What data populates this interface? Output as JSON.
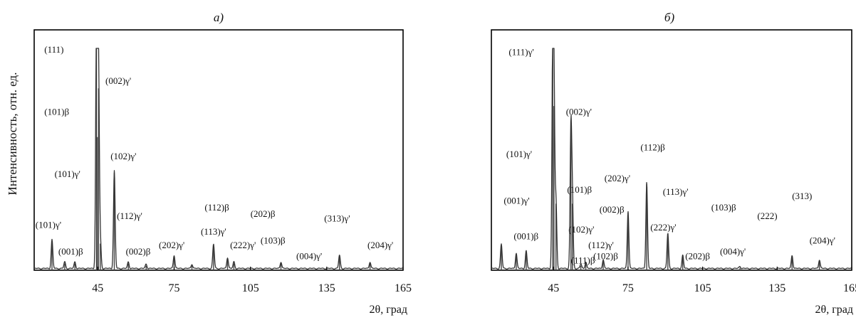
{
  "figure": {
    "ylabel": "Интенсивность, отн. ед."
  },
  "chart_data": [
    {
      "type": "line",
      "title": "a)",
      "xlabel": "2θ, град",
      "ylabel": "Интенсивность, отн. ед.",
      "xlim": [
        20,
        165
      ],
      "ylim": [
        0,
        100
      ],
      "xticks": [
        45,
        75,
        105,
        135,
        165
      ],
      "grid": false,
      "peaks": [
        {
          "x": 27,
          "y": 13
        },
        {
          "x": 32,
          "y": 3
        },
        {
          "x": 36,
          "y": 3
        },
        {
          "x": 44.5,
          "y": 100
        },
        {
          "x": 45.3,
          "y": 82
        },
        {
          "x": 44.8,
          "y": 60
        },
        {
          "x": 46,
          "y": 12
        },
        {
          "x": 51.5,
          "y": 44
        },
        {
          "x": 57,
          "y": 3
        },
        {
          "x": 64,
          "y": 2
        },
        {
          "x": 75,
          "y": 6
        },
        {
          "x": 82,
          "y": 2
        },
        {
          "x": 90.5,
          "y": 11
        },
        {
          "x": 96,
          "y": 5
        },
        {
          "x": 98.5,
          "y": 3
        },
        {
          "x": 117,
          "y": 3
        },
        {
          "x": 140,
          "y": 6
        },
        {
          "x": 152,
          "y": 3
        }
      ],
      "annotations": [
        {
          "text": "(111)",
          "x": 24,
          "y": 98
        },
        {
          "text": "(002)γ'",
          "x": 48,
          "y": 84
        },
        {
          "text": "(101)β",
          "x": 24,
          "y": 70
        },
        {
          "text": "(102)γ'",
          "x": 50,
          "y": 50
        },
        {
          "text": "(101)γ'",
          "x": 28,
          "y": 42
        },
        {
          "text": "(112)γ'",
          "x": 52.5,
          "y": 23
        },
        {
          "text": "(112)β",
          "x": 87,
          "y": 27
        },
        {
          "text": "(202)β",
          "x": 105,
          "y": 24
        },
        {
          "text": "(313)γ'",
          "x": 134,
          "y": 22
        },
        {
          "text": "(101)γ'",
          "x": 20.5,
          "y": 19
        },
        {
          "text": "(113)γ'",
          "x": 85.5,
          "y": 16
        },
        {
          "text": "(222)γ'",
          "x": 97,
          "y": 10
        },
        {
          "text": "(103)β",
          "x": 109,
          "y": 12
        },
        {
          "text": "(202)γ'",
          "x": 69,
          "y": 10
        },
        {
          "text": "(204)γ'",
          "x": 151,
          "y": 10
        },
        {
          "text": "(001)β",
          "x": 29.5,
          "y": 7
        },
        {
          "text": "(002)β",
          "x": 56,
          "y": 7
        },
        {
          "text": "(004)γ'",
          "x": 123,
          "y": 5
        }
      ]
    },
    {
      "type": "line",
      "title": "б)",
      "xlabel": "2θ, град",
      "xlim": [
        20,
        165
      ],
      "ylim": [
        0,
        100
      ],
      "xticks": [
        45,
        75,
        105,
        135,
        165
      ],
      "grid": false,
      "peaks": [
        {
          "x": 24,
          "y": 11
        },
        {
          "x": 30,
          "y": 7
        },
        {
          "x": 34,
          "y": 8
        },
        {
          "x": 44.7,
          "y": 100
        },
        {
          "x": 45.2,
          "y": 74
        },
        {
          "x": 46,
          "y": 30
        },
        {
          "x": 52,
          "y": 63
        },
        {
          "x": 52.6,
          "y": 30
        },
        {
          "x": 56,
          "y": 2
        },
        {
          "x": 58,
          "y": 3
        },
        {
          "x": 65,
          "y": 4
        },
        {
          "x": 75,
          "y": 26
        },
        {
          "x": 82.5,
          "y": 39
        },
        {
          "x": 91,
          "y": 16
        },
        {
          "x": 97,
          "y": 6
        },
        {
          "x": 120,
          "y": 1
        },
        {
          "x": 141,
          "y": 6
        },
        {
          "x": 152,
          "y": 4
        }
      ],
      "annotations": [
        {
          "text": "(111)γ'",
          "x": 27,
          "y": 97
        },
        {
          "text": "(002)γ'",
          "x": 50,
          "y": 70
        },
        {
          "text": "(112)β",
          "x": 80,
          "y": 54
        },
        {
          "text": "(101)γ'",
          "x": 26,
          "y": 51
        },
        {
          "text": "(202)γ'",
          "x": 65.5,
          "y": 40
        },
        {
          "text": "(101)β",
          "x": 50.5,
          "y": 35
        },
        {
          "text": "(113)γ'",
          "x": 89,
          "y": 34
        },
        {
          "text": "(313)",
          "x": 141,
          "y": 32
        },
        {
          "text": "(001)γ'",
          "x": 25,
          "y": 30
        },
        {
          "text": "(103)β",
          "x": 108.5,
          "y": 27
        },
        {
          "text": "(002)β",
          "x": 63.5,
          "y": 26
        },
        {
          "text": "(222)",
          "x": 127,
          "y": 23
        },
        {
          "text": "(102)γ'",
          "x": 51,
          "y": 17
        },
        {
          "text": "(222)γ'",
          "x": 84,
          "y": 18
        },
        {
          "text": "(001)β",
          "x": 29,
          "y": 14
        },
        {
          "text": "(204)γ'",
          "x": 148,
          "y": 12
        },
        {
          "text": "(112)γ'",
          "x": 59,
          "y": 10
        },
        {
          "text": "(004)γ'",
          "x": 112,
          "y": 7
        },
        {
          "text": "(202)β",
          "x": 98,
          "y": 5
        },
        {
          "text": "(102)β",
          "x": 61,
          "y": 5
        },
        {
          "text": "(111)β",
          "x": 52,
          "y": 3
        }
      ]
    }
  ]
}
